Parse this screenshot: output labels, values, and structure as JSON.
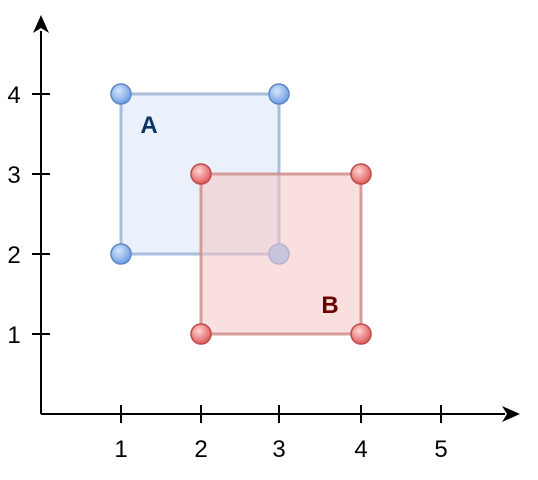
{
  "x_ticks": [
    "1",
    "2",
    "3",
    "4",
    "5"
  ],
  "y_ticks": [
    "1",
    "2",
    "3",
    "4"
  ],
  "rect_a": {
    "label": "A",
    "corners": [
      [
        1,
        2
      ],
      [
        3,
        2
      ],
      [
        3,
        4
      ],
      [
        1,
        4
      ]
    ],
    "fill": "#eaf1fb",
    "stroke": "#a9bedc",
    "label_color": "#0c3564",
    "point_color": "#7aa6e6"
  },
  "rect_b": {
    "label": "B",
    "corners": [
      [
        2,
        1
      ],
      [
        4,
        1
      ],
      [
        4,
        3
      ],
      [
        2,
        3
      ]
    ],
    "fill": "#f8d7d5",
    "stroke": "#d49b99",
    "label_color": "#6b0000",
    "point_color": "#e06666"
  },
  "axis_color": "#000000"
}
